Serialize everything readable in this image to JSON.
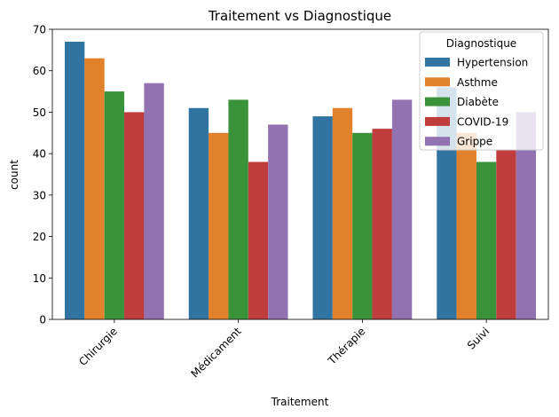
{
  "chart_data": {
    "type": "bar",
    "title": "Traitement vs Diagnostique",
    "xlabel": "Traitement",
    "ylabel": "count",
    "categories": [
      "Chirurgie",
      "Médicament",
      "Thérapie",
      "Suivi"
    ],
    "ylim": [
      0,
      70
    ],
    "yticks": [
      0,
      10,
      20,
      30,
      40,
      50,
      60,
      70
    ],
    "grid": false,
    "legend": {
      "title": "Diagnostique",
      "placement": "top-right"
    },
    "series": [
      {
        "name": "Hypertension",
        "color": "#3274a1",
        "values": [
          67,
          51,
          49,
          56
        ]
      },
      {
        "name": "Asthme",
        "color": "#e1812c",
        "values": [
          63,
          45,
          51,
          45
        ]
      },
      {
        "name": "Diabète",
        "color": "#3a923a",
        "values": [
          55,
          53,
          45,
          38
        ]
      },
      {
        "name": "COVID-19",
        "color": "#c03d3e",
        "values": [
          50,
          38,
          46,
          41
        ]
      },
      {
        "name": "Grippe",
        "color": "#9372b2",
        "values": [
          57,
          47,
          53,
          50
        ]
      }
    ]
  }
}
